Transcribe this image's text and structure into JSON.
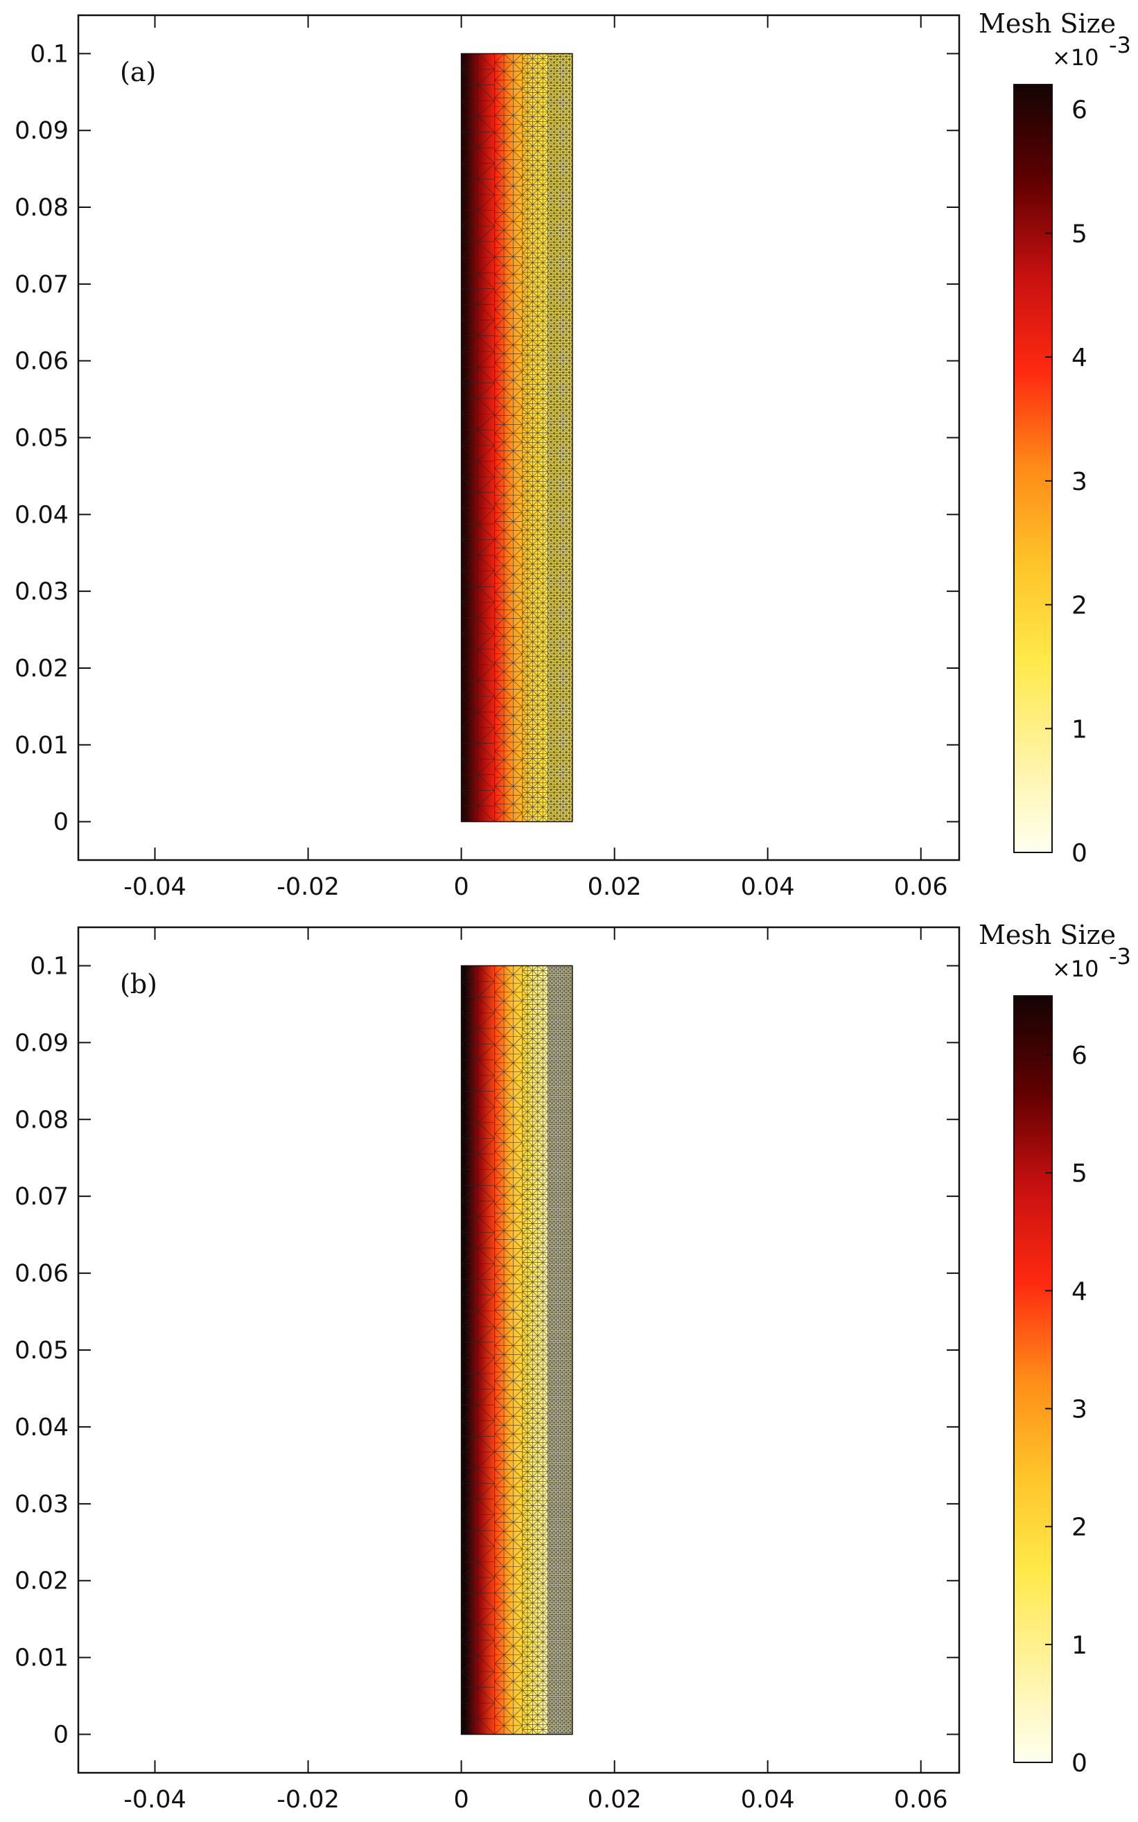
{
  "chart_data": [
    {
      "type": "heatmap",
      "panel_label": "(a)",
      "x_ticks": [
        "-0.04",
        "-0.02",
        "0",
        "0.02",
        "0.04",
        "0.06"
      ],
      "x_tick_values": [
        -0.04,
        -0.02,
        0,
        0.02,
        0.04,
        0.06
      ],
      "y_ticks": [
        "0.1",
        "0.09",
        "0.08",
        "0.07",
        "0.06",
        "0.05",
        "0.04",
        "0.03",
        "0.02",
        "0.01",
        "0"
      ],
      "y_tick_values": [
        0.1,
        0.09,
        0.08,
        0.07,
        0.06,
        0.05,
        0.04,
        0.03,
        0.02,
        0.01,
        0
      ],
      "xlim": [
        -0.05,
        0.065
      ],
      "ylim": [
        -0.005,
        0.105
      ],
      "domain": {
        "x": [
          0,
          0.0145
        ],
        "y": [
          0,
          0.1
        ]
      },
      "mesh_profile": [
        {
          "x": 0.0005,
          "size": 6.0
        },
        {
          "x": 0.0025,
          "size": 5.0
        },
        {
          "x": 0.0045,
          "size": 4.0
        },
        {
          "x": 0.0065,
          "size": 3.0
        },
        {
          "x": 0.0085,
          "size": 2.2
        },
        {
          "x": 0.0105,
          "size": 1.7
        },
        {
          "x": 0.0125,
          "size": 1.4
        },
        {
          "x": 0.014,
          "size": 1.3
        }
      ],
      "colorbar": {
        "title": "Mesh Size",
        "scale": "×10",
        "scale_exp": "-3",
        "ticks": [
          "0",
          "1",
          "2",
          "3",
          "4",
          "5",
          "6"
        ],
        "tick_values": [
          0,
          1,
          2,
          3,
          4,
          5,
          6
        ],
        "range": [
          0,
          6.2
        ]
      }
    },
    {
      "type": "heatmap",
      "panel_label": "(b)",
      "x_ticks": [
        "-0.04",
        "-0.02",
        "0",
        "0.02",
        "0.04",
        "0.06"
      ],
      "x_tick_values": [
        -0.04,
        -0.02,
        0,
        0.02,
        0.04,
        0.06
      ],
      "y_ticks": [
        "0.1",
        "0.09",
        "0.08",
        "0.07",
        "0.06",
        "0.05",
        "0.04",
        "0.03",
        "0.02",
        "0.01",
        "0"
      ],
      "y_tick_values": [
        0.1,
        0.09,
        0.08,
        0.07,
        0.06,
        0.05,
        0.04,
        0.03,
        0.02,
        0.01,
        0
      ],
      "xlim": [
        -0.05,
        0.065
      ],
      "ylim": [
        -0.005,
        0.105
      ],
      "domain": {
        "x": [
          0,
          0.0145
        ],
        "y": [
          0,
          0.1
        ]
      },
      "mesh_profile": [
        {
          "x": 0.0005,
          "size": 6.5
        },
        {
          "x": 0.0025,
          "size": 5.2
        },
        {
          "x": 0.0045,
          "size": 3.8
        },
        {
          "x": 0.0065,
          "size": 2.6
        },
        {
          "x": 0.0085,
          "size": 1.8
        },
        {
          "x": 0.0105,
          "size": 1.0
        },
        {
          "x": 0.0125,
          "size": 0.3
        },
        {
          "x": 0.014,
          "size": 0.6
        }
      ],
      "colorbar": {
        "title": "Mesh Size",
        "scale": "×10",
        "scale_exp": "-3",
        "ticks": [
          "0",
          "1",
          "2",
          "3",
          "4",
          "5",
          "6"
        ],
        "tick_values": [
          0,
          1,
          2,
          3,
          4,
          5,
          6
        ],
        "range": [
          0,
          6.5
        ]
      }
    }
  ],
  "colormap": [
    "#fffff0",
    "#fff3a0",
    "#ffe94a",
    "#ffc42a",
    "#ff8c18",
    "#ff2a10",
    "#c81010",
    "#600000",
    "#140404"
  ]
}
